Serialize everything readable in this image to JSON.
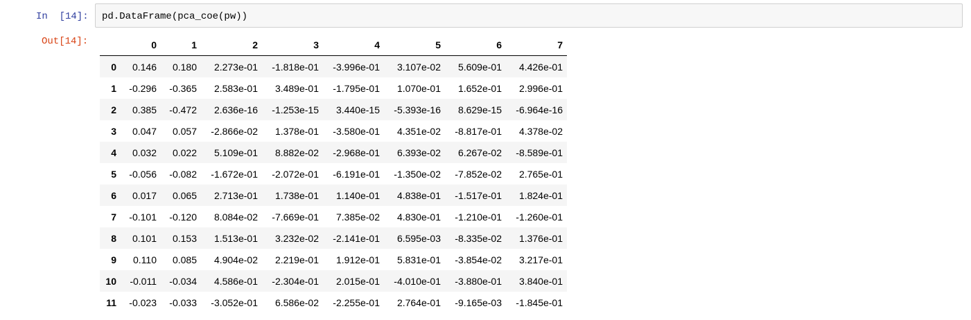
{
  "notebook": {
    "input_prompt": "In  [14]:",
    "output_prompt": "Out[14]:",
    "code": "pd.DataFrame(pca_coe(pw))"
  },
  "table": {
    "columns": [
      "",
      "0",
      "1",
      "2",
      "3",
      "4",
      "5",
      "6",
      "7"
    ],
    "rows": [
      {
        "index": "0",
        "cells": [
          "0.146",
          "0.180",
          "2.273e-01",
          "-1.818e-01",
          "-3.996e-01",
          "3.107e-02",
          "5.609e-01",
          "4.426e-01"
        ]
      },
      {
        "index": "1",
        "cells": [
          "-0.296",
          "-0.365",
          "2.583e-01",
          "3.489e-01",
          "-1.795e-01",
          "1.070e-01",
          "1.652e-01",
          "2.996e-01"
        ]
      },
      {
        "index": "2",
        "cells": [
          "0.385",
          "-0.472",
          "2.636e-16",
          "-1.253e-15",
          "3.440e-15",
          "-5.393e-16",
          "8.629e-15",
          "-6.964e-16"
        ]
      },
      {
        "index": "3",
        "cells": [
          "0.047",
          "0.057",
          "-2.866e-02",
          "1.378e-01",
          "-3.580e-01",
          "4.351e-02",
          "-8.817e-01",
          "4.378e-02"
        ]
      },
      {
        "index": "4",
        "cells": [
          "0.032",
          "0.022",
          "5.109e-01",
          "8.882e-02",
          "-2.968e-01",
          "6.393e-02",
          "6.267e-02",
          "-8.589e-01"
        ]
      },
      {
        "index": "5",
        "cells": [
          "-0.056",
          "-0.082",
          "-1.672e-01",
          "-2.072e-01",
          "-6.191e-01",
          "-1.350e-02",
          "-7.852e-02",
          "2.765e-01"
        ]
      },
      {
        "index": "6",
        "cells": [
          "0.017",
          "0.065",
          "2.713e-01",
          "1.738e-01",
          "1.140e-01",
          "4.838e-01",
          "-1.517e-01",
          "1.824e-01"
        ]
      },
      {
        "index": "7",
        "cells": [
          "-0.101",
          "-0.120",
          "8.084e-02",
          "-7.669e-01",
          "7.385e-02",
          "4.830e-01",
          "-1.210e-01",
          "-1.260e-01"
        ]
      },
      {
        "index": "8",
        "cells": [
          "0.101",
          "0.153",
          "1.513e-01",
          "3.232e-02",
          "-2.141e-01",
          "6.595e-03",
          "-8.335e-02",
          "1.376e-01"
        ]
      },
      {
        "index": "9",
        "cells": [
          "0.110",
          "0.085",
          "4.904e-02",
          "2.219e-01",
          "1.912e-01",
          "5.831e-01",
          "-3.854e-02",
          "3.217e-01"
        ]
      },
      {
        "index": "10",
        "cells": [
          "-0.011",
          "-0.034",
          "4.586e-01",
          "-2.304e-01",
          "2.015e-01",
          "-4.010e-01",
          "-3.880e-01",
          "3.840e-01"
        ]
      },
      {
        "index": "11",
        "cells": [
          "-0.023",
          "-0.033",
          "-3.052e-01",
          "6.586e-02",
          "-2.255e-01",
          "2.764e-01",
          "-9.165e-03",
          "-1.845e-01"
        ]
      }
    ]
  },
  "colors": {
    "input_prompt": "#303f9f",
    "output_prompt": "#d84315",
    "input_background": "#f7f7f7",
    "input_border": "#cfcfcf",
    "row_stripe": "#f5f5f5"
  }
}
